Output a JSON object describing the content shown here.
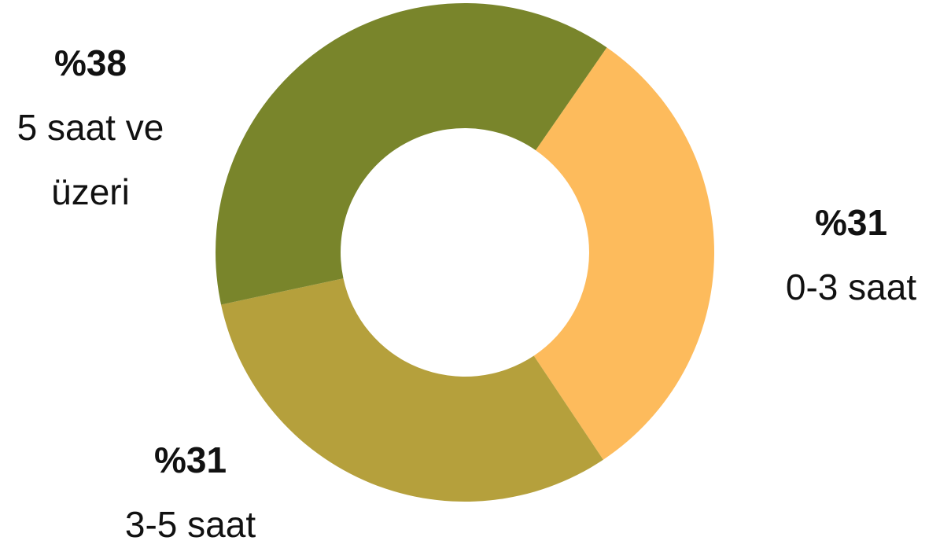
{
  "chart_data": {
    "type": "pie",
    "categories": [
      "0-3 saat",
      "3-5 saat",
      "5 saat ve üzeri"
    ],
    "values": [
      31,
      31,
      38
    ],
    "value_labels": [
      "%31",
      "%31",
      "%38"
    ],
    "colors": [
      "#fdbb5c",
      "#b5a03c",
      "#79852b"
    ]
  }
}
